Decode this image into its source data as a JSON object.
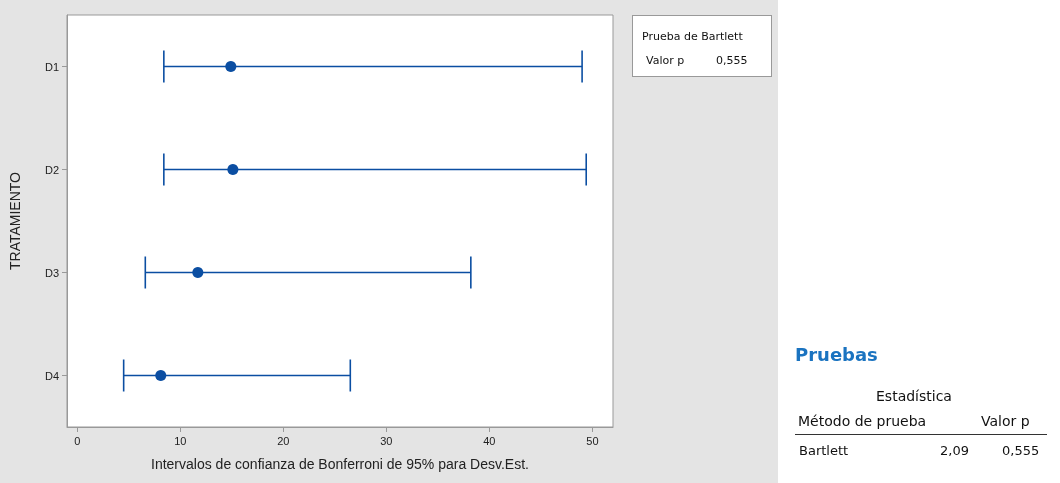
{
  "chart_data": {
    "type": "scatter",
    "orientation": "horizontal",
    "xlabel": "Intervalos de confianza de Bonferroni de 95% para Desv.Est.",
    "ylabel": "TRATAMIENTO",
    "categories": [
      "D1",
      "D2",
      "D3",
      "D4"
    ],
    "values": [
      14.9,
      15.1,
      11.7,
      8.1
    ],
    "errors": [
      [
        8.4,
        49.0
      ],
      [
        8.4,
        49.4
      ],
      [
        6.6,
        38.2
      ],
      [
        4.5,
        26.5
      ]
    ],
    "color": "#0b4ea2",
    "marker": "circle",
    "xlim": [
      -1,
      52
    ],
    "xticks": [
      0,
      10,
      20,
      30,
      40,
      50
    ],
    "grid": false,
    "legend": false,
    "annotations": [
      "Prueba de Bartlett",
      "Valor p",
      "0,555",
      "Pruebas",
      "Estadística",
      "Método de prueba",
      "Valor p",
      "Bartlett",
      "2,09",
      "0,555"
    ]
  }
}
